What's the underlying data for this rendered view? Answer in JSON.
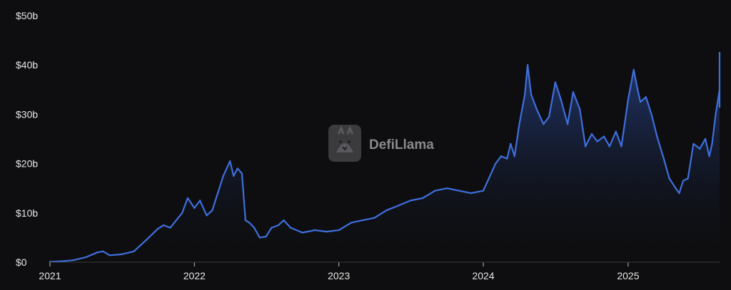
{
  "watermark": {
    "text": "DefiLlama",
    "logo_icon": "llama-logo-icon"
  },
  "chart_data": {
    "type": "area",
    "title": "",
    "xlabel": "",
    "ylabel": "",
    "ylim": [
      0,
      50
    ],
    "xlim": [
      "2021-01-01",
      "2025-08-20"
    ],
    "grid": false,
    "legend": "none",
    "y_ticks": [
      {
        "value": 0,
        "label": "$0"
      },
      {
        "value": 10,
        "label": "$10b"
      },
      {
        "value": 20,
        "label": "$20b"
      },
      {
        "value": 30,
        "label": "$30b"
      },
      {
        "value": 40,
        "label": "$40b"
      },
      {
        "value": 50,
        "label": "$50b"
      }
    ],
    "x_ticks": [
      {
        "value": "2021-01-01",
        "label": "2021"
      },
      {
        "value": "2022-01-01",
        "label": "2022"
      },
      {
        "value": "2023-01-01",
        "label": "2023"
      },
      {
        "value": "2024-01-01",
        "label": "2024"
      },
      {
        "value": "2025-01-01",
        "label": "2025"
      }
    ],
    "colors": {
      "line": "#3f6fdc",
      "fill_top": "#2a4a9a",
      "fill_bottom": "#0e0e10",
      "background": "#0e0e10"
    },
    "series": [
      {
        "values_unit": "USD billions",
        "points": [
          [
            "2021-01-01",
            0.1
          ],
          [
            "2021-02-01",
            0.2
          ],
          [
            "2021-03-01",
            0.4
          ],
          [
            "2021-04-01",
            1.0
          ],
          [
            "2021-05-01",
            2.0
          ],
          [
            "2021-05-15",
            2.2
          ],
          [
            "2021-06-01",
            1.4
          ],
          [
            "2021-07-01",
            1.6
          ],
          [
            "2021-08-01",
            2.2
          ],
          [
            "2021-09-01",
            4.5
          ],
          [
            "2021-10-01",
            6.8
          ],
          [
            "2021-10-15",
            7.5
          ],
          [
            "2021-11-01",
            7.0
          ],
          [
            "2021-12-01",
            10.0
          ],
          [
            "2021-12-15",
            13.0
          ],
          [
            "2022-01-01",
            11.0
          ],
          [
            "2022-01-15",
            12.5
          ],
          [
            "2022-02-01",
            9.5
          ],
          [
            "2022-02-15",
            10.5
          ],
          [
            "2022-03-01",
            14.0
          ],
          [
            "2022-03-15",
            17.5
          ],
          [
            "2022-04-01",
            20.5
          ],
          [
            "2022-04-10",
            17.5
          ],
          [
            "2022-04-20",
            19.0
          ],
          [
            "2022-05-01",
            18.0
          ],
          [
            "2022-05-10",
            8.5
          ],
          [
            "2022-05-20",
            8.0
          ],
          [
            "2022-06-01",
            7.0
          ],
          [
            "2022-06-15",
            5.0
          ],
          [
            "2022-07-01",
            5.2
          ],
          [
            "2022-07-15",
            7.0
          ],
          [
            "2022-08-01",
            7.5
          ],
          [
            "2022-08-15",
            8.5
          ],
          [
            "2022-09-01",
            7.0
          ],
          [
            "2022-10-01",
            6.0
          ],
          [
            "2022-11-01",
            6.5
          ],
          [
            "2022-12-01",
            6.2
          ],
          [
            "2023-01-01",
            6.5
          ],
          [
            "2023-02-01",
            8.0
          ],
          [
            "2023-03-01",
            8.5
          ],
          [
            "2023-04-01",
            9.0
          ],
          [
            "2023-05-01",
            10.5
          ],
          [
            "2023-06-01",
            11.5
          ],
          [
            "2023-07-01",
            12.5
          ],
          [
            "2023-08-01",
            13.0
          ],
          [
            "2023-09-01",
            14.5
          ],
          [
            "2023-10-01",
            15.0
          ],
          [
            "2023-11-01",
            14.5
          ],
          [
            "2023-12-01",
            14.0
          ],
          [
            "2024-01-01",
            14.5
          ],
          [
            "2024-01-15",
            17.0
          ],
          [
            "2024-02-01",
            20.0
          ],
          [
            "2024-02-15",
            21.5
          ],
          [
            "2024-03-01",
            21.0
          ],
          [
            "2024-03-10",
            24.0
          ],
          [
            "2024-03-20",
            21.5
          ],
          [
            "2024-04-01",
            28.0
          ],
          [
            "2024-04-15",
            34.0
          ],
          [
            "2024-04-22",
            40.0
          ],
          [
            "2024-05-01",
            34.0
          ],
          [
            "2024-05-15",
            31.0
          ],
          [
            "2024-06-01",
            28.0
          ],
          [
            "2024-06-15",
            29.5
          ],
          [
            "2024-07-01",
            36.5
          ],
          [
            "2024-07-15",
            33.0
          ],
          [
            "2024-08-01",
            28.0
          ],
          [
            "2024-08-15",
            34.5
          ],
          [
            "2024-09-01",
            31.0
          ],
          [
            "2024-09-15",
            23.5
          ],
          [
            "2024-10-01",
            26.0
          ],
          [
            "2024-10-15",
            24.5
          ],
          [
            "2024-11-01",
            25.5
          ],
          [
            "2024-11-15",
            23.5
          ],
          [
            "2024-12-01",
            26.5
          ],
          [
            "2024-12-15",
            23.5
          ],
          [
            "2025-01-01",
            33.0
          ],
          [
            "2025-01-15",
            39.0
          ],
          [
            "2025-01-25",
            35.0
          ],
          [
            "2025-02-01",
            32.5
          ],
          [
            "2025-02-15",
            33.5
          ],
          [
            "2025-03-01",
            30.0
          ],
          [
            "2025-03-15",
            25.5
          ],
          [
            "2025-04-01",
            21.0
          ],
          [
            "2025-04-15",
            17.0
          ],
          [
            "2025-05-01",
            15.0
          ],
          [
            "2025-05-10",
            14.0
          ],
          [
            "2025-05-20",
            16.5
          ],
          [
            "2025-06-01",
            17.0
          ],
          [
            "2025-06-15",
            24.0
          ],
          [
            "2025-07-01",
            23.0
          ],
          [
            "2025-07-15",
            25.0
          ],
          [
            "2025-07-25",
            21.5
          ],
          [
            "2025-08-01",
            24.0
          ],
          [
            "2025-08-10",
            30.0
          ],
          [
            "2025-08-20",
            35.0
          ],
          [
            "2025-08-28",
            31.5
          ],
          [
            "2025-09-05",
            36.0
          ],
          [
            "2025-09-10",
            42.0
          ],
          [
            "2025-09-15",
            38.5
          ],
          [
            "2025-09-20",
            42.5
          ],
          [
            "2025-09-23",
            39.0
          ]
        ]
      }
    ]
  }
}
